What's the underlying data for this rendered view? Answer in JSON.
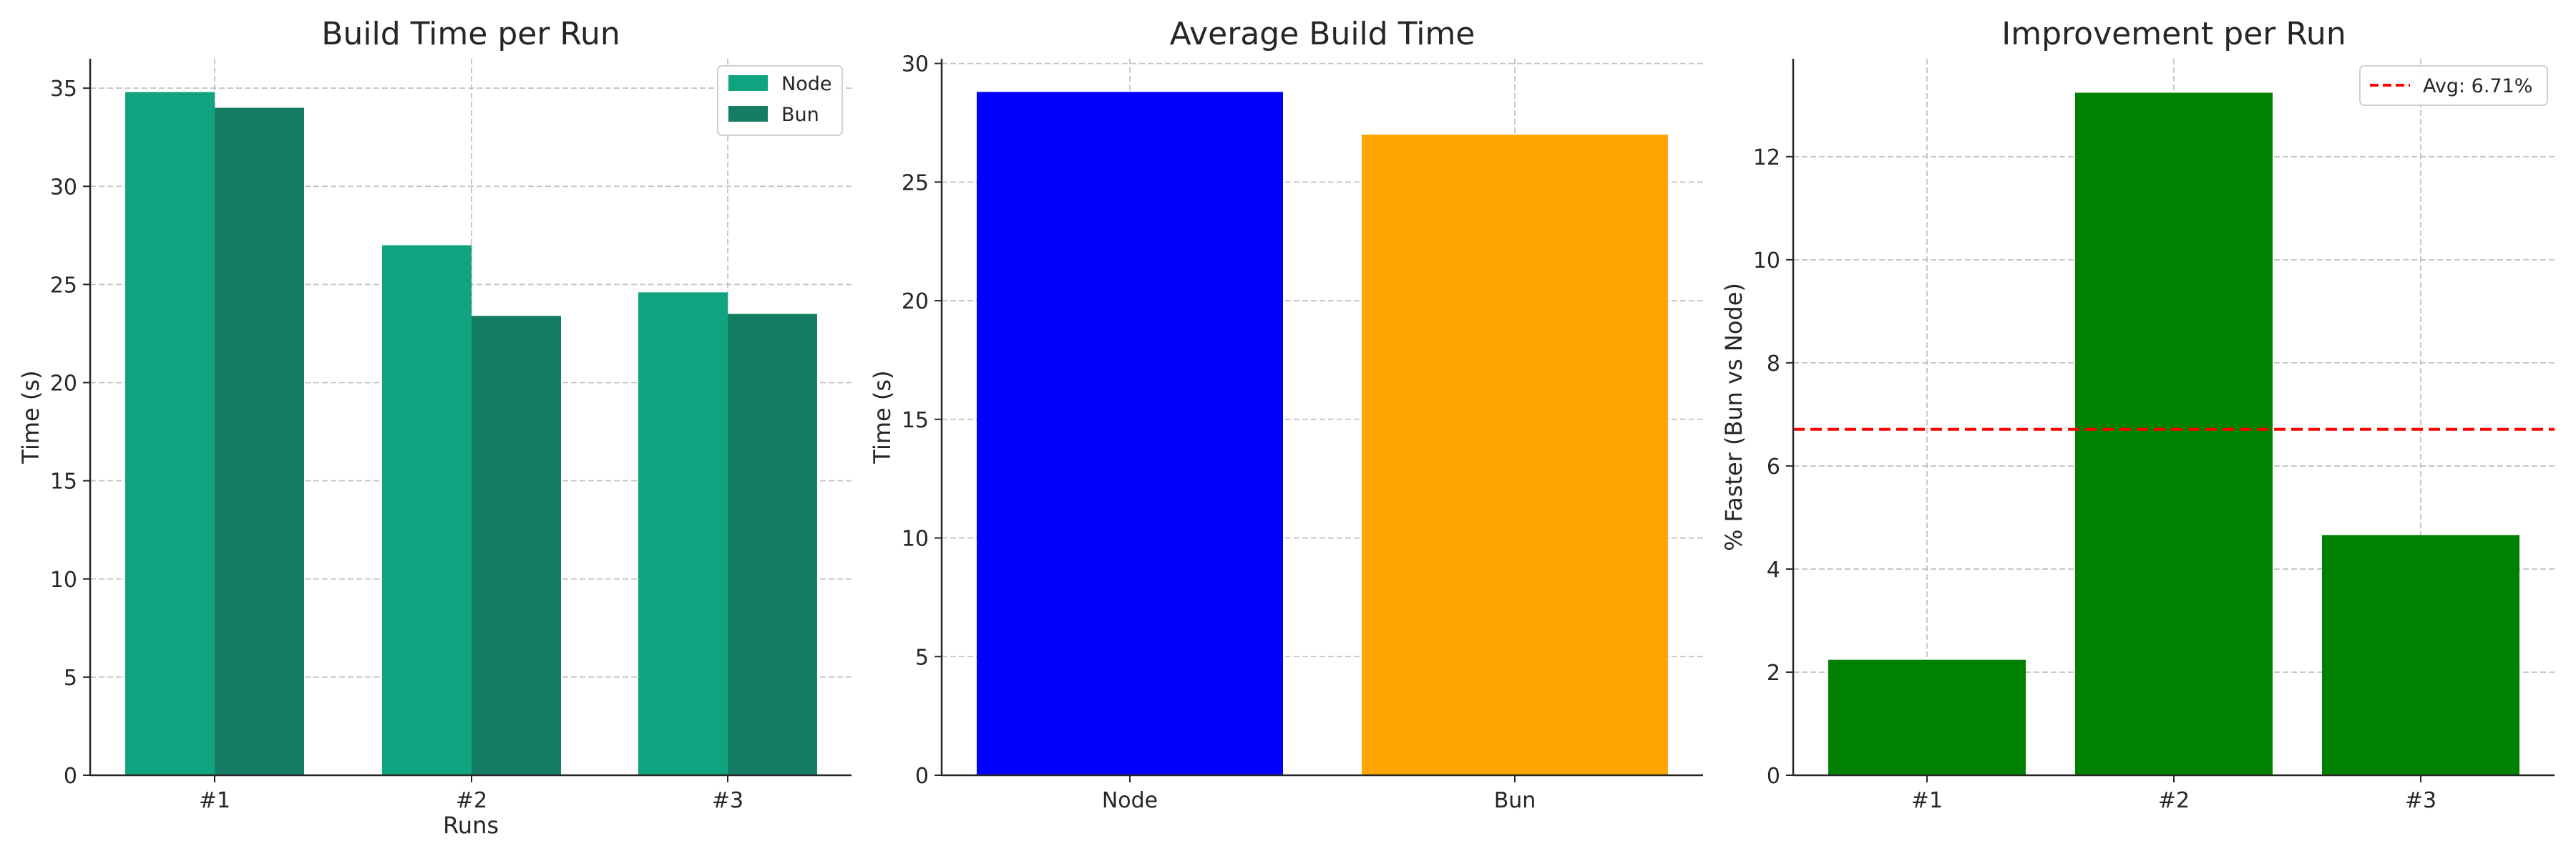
{
  "colors": {
    "node_run": "#10a37f",
    "bun_run": "#147d64",
    "avg_node": "#0000ff",
    "avg_bun": "#ffa500",
    "improvement": "#008000",
    "avg_line": "#ff0000"
  },
  "chart_data": [
    {
      "type": "bar",
      "title": "Build Time per Run",
      "xlabel": "Runs",
      "ylabel": "Time (s)",
      "categories": [
        "#1",
        "#2",
        "#3"
      ],
      "series": [
        {
          "name": "Node",
          "values": [
            34.8,
            27.0,
            24.6
          ]
        },
        {
          "name": "Bun",
          "values": [
            34.0,
            23.4,
            23.5
          ]
        }
      ],
      "ylim": [
        0,
        36.5
      ],
      "yticks": [
        0,
        5,
        10,
        15,
        20,
        25,
        30,
        35
      ],
      "grid": true,
      "legend": "top-right"
    },
    {
      "type": "bar",
      "title": "Average Build Time",
      "xlabel": "",
      "ylabel": "Time (s)",
      "categories": [
        "Node",
        "Bun"
      ],
      "values": [
        28.8,
        27.0
      ],
      "ylim": [
        0,
        30.2
      ],
      "yticks": [
        0,
        5,
        10,
        15,
        20,
        25,
        30
      ],
      "grid": true
    },
    {
      "type": "bar",
      "title": "Improvement per Run",
      "xlabel": "",
      "ylabel": "% Faster (Bun vs Node)",
      "categories": [
        "#1",
        "#2",
        "#3"
      ],
      "values": [
        2.24,
        13.24,
        4.66
      ],
      "ylim": [
        0,
        13.9
      ],
      "yticks": [
        0,
        2,
        4,
        6,
        8,
        10,
        12
      ],
      "reference_line": {
        "value": 6.71,
        "label": "Avg: 6.71%"
      },
      "grid": true,
      "legend": "top-right"
    }
  ]
}
